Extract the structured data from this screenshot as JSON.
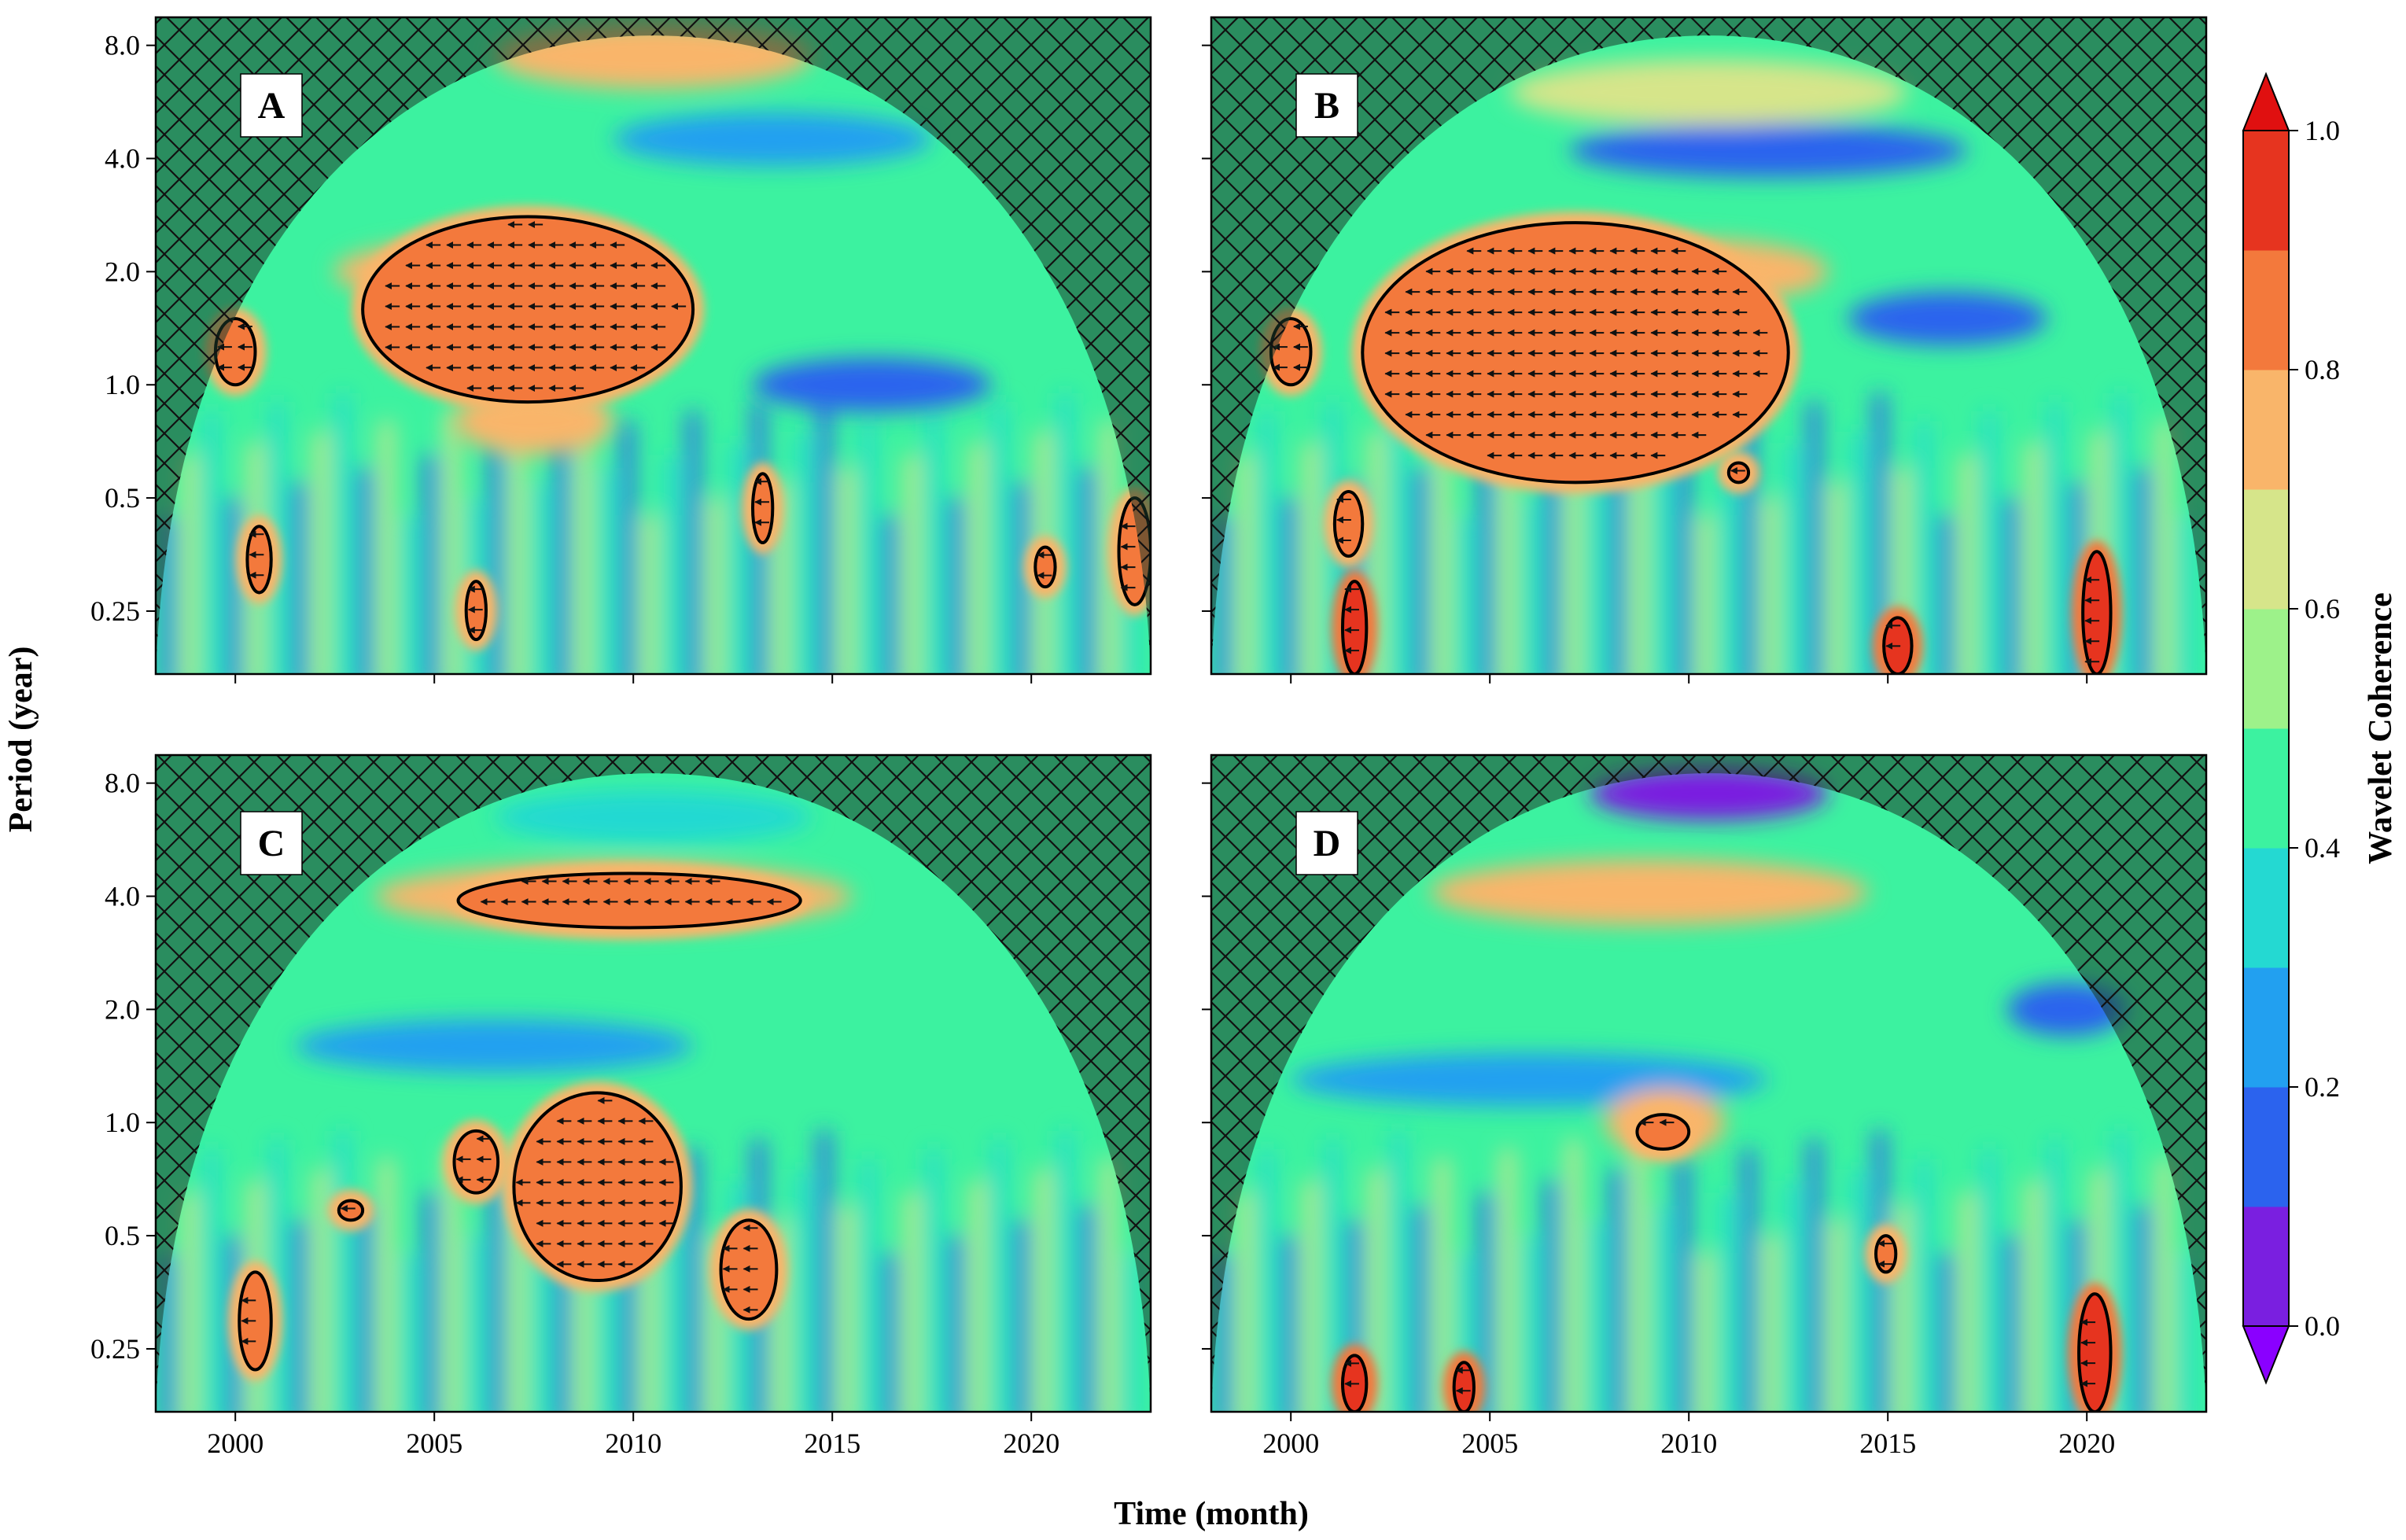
{
  "chart_data": {
    "type": "heatmap",
    "title": "",
    "xlabel": "Time (month)",
    "ylabel": "Period (year)",
    "x_ticks": [
      "2000",
      "2005",
      "2010",
      "2015",
      "2020"
    ],
    "x_tick_values": [
      2000,
      2005,
      2010,
      2015,
      2020
    ],
    "xlim": [
      1998,
      2023
    ],
    "y_ticks": [
      "8.0",
      "4.0",
      "2.0",
      "1.0",
      "0.5",
      "0.25"
    ],
    "y_tick_values": [
      8.0,
      4.0,
      2.0,
      1.0,
      0.5,
      0.25
    ],
    "ylim": [
      0.17,
      9.5
    ],
    "y_scale": "log2",
    "y_inverted": true,
    "grid": false,
    "cone_of_influence": "hatched",
    "colorbar": {
      "label": "Wavelet Coherence",
      "ticks": [
        "0.0",
        "0.2",
        "0.4",
        "0.6",
        "0.8",
        "1.0"
      ],
      "tick_values": [
        0.0,
        0.2,
        0.4,
        0.6,
        0.8,
        1.0
      ],
      "range": [
        0.0,
        1.0
      ],
      "levels": 10,
      "colors": [
        "#7a1fe0",
        "#2b63ee",
        "#22a0f0",
        "#24d9d2",
        "#3cf2a0",
        "#9df28a",
        "#d6e58a",
        "#f9b56a",
        "#f3793c",
        "#e6341f"
      ],
      "extend_low": "#8a00ff",
      "extend_high": "#e01010",
      "placement": "right"
    },
    "panels": [
      {
        "label": "A",
        "significant_regions": [
          {
            "t_start": 2003.2,
            "t_end": 2011.5,
            "period_low": 0.9,
            "period_high": 2.8,
            "coherence": 0.85
          },
          {
            "t_start": 1999.5,
            "t_end": 2000.5,
            "period_low": 1.0,
            "period_high": 1.5,
            "coherence": 0.82
          },
          {
            "t_start": 2000.3,
            "t_end": 2000.9,
            "period_low": 0.28,
            "period_high": 0.42,
            "coherence": 0.8
          },
          {
            "t_start": 2005.8,
            "t_end": 2006.3,
            "period_low": 0.21,
            "period_high": 0.3,
            "coherence": 0.8
          },
          {
            "t_start": 2013.0,
            "t_end": 2013.5,
            "period_low": 0.38,
            "period_high": 0.58,
            "coherence": 0.8
          },
          {
            "t_start": 2020.1,
            "t_end": 2020.6,
            "period_low": 0.29,
            "period_high": 0.37,
            "coherence": 0.8
          },
          {
            "t_start": 2022.2,
            "t_end": 2023.0,
            "period_low": 0.26,
            "period_high": 0.5,
            "coherence": 0.82
          }
        ],
        "high_bands": [
          {
            "period_center": 2.0,
            "t_center": 2006.5,
            "t_width": 8.0,
            "coherence": 0.7
          },
          {
            "period_center": 7.5,
            "t_center": 2010.5,
            "t_width": 8.0,
            "coherence": 0.78
          },
          {
            "period_center": 0.8,
            "t_center": 2007.5,
            "t_width": 4.0,
            "coherence": 0.78
          }
        ],
        "low_bands": [
          {
            "period_center": 4.5,
            "t_center": 2013.5,
            "t_width": 8.0,
            "coherence": 0.28
          },
          {
            "period_center": 1.0,
            "t_center": 2016.0,
            "t_width": 6.0,
            "coherence": 0.15
          }
        ]
      },
      {
        "label": "B",
        "significant_regions": [
          {
            "t_start": 2001.8,
            "t_end": 2012.5,
            "period_low": 0.55,
            "period_high": 2.7,
            "coherence": 0.85
          },
          {
            "t_start": 1999.5,
            "t_end": 2000.5,
            "period_low": 1.0,
            "period_high": 1.5,
            "coherence": 0.82
          },
          {
            "t_start": 2001.1,
            "t_end": 2001.8,
            "period_low": 0.35,
            "period_high": 0.52,
            "coherence": 0.8
          },
          {
            "t_start": 2001.3,
            "t_end": 2001.9,
            "period_low": 0.17,
            "period_high": 0.3,
            "coherence": 0.92
          },
          {
            "t_start": 2011.0,
            "t_end": 2011.5,
            "period_low": 0.55,
            "period_high": 0.62,
            "coherence": 0.8
          },
          {
            "t_start": 2014.9,
            "t_end": 2015.6,
            "period_low": 0.17,
            "period_high": 0.24,
            "coherence": 0.9
          },
          {
            "t_start": 2019.9,
            "t_end": 2020.6,
            "period_low": 0.17,
            "period_high": 0.36,
            "coherence": 0.92
          }
        ],
        "high_bands": [
          {
            "period_center": 2.0,
            "t_center": 2010.0,
            "t_width": 7.0,
            "coherence": 0.78
          },
          {
            "period_center": 6.0,
            "t_center": 2010.5,
            "t_width": 10.0,
            "coherence": 0.68
          }
        ],
        "low_bands": [
          {
            "period_center": 4.2,
            "t_center": 2012.0,
            "t_width": 10.0,
            "coherence": 0.18
          },
          {
            "period_center": 1.5,
            "t_center": 2016.5,
            "t_width": 5.0,
            "coherence": 0.18
          }
        ]
      },
      {
        "label": "C",
        "significant_regions": [
          {
            "t_start": 2005.6,
            "t_end": 2014.2,
            "period_low": 3.3,
            "period_high": 4.6,
            "coherence": 0.85
          },
          {
            "t_start": 2007.0,
            "t_end": 2011.2,
            "period_low": 0.38,
            "period_high": 1.2,
            "coherence": 0.83
          },
          {
            "t_start": 2005.5,
            "t_end": 2006.6,
            "period_low": 0.65,
            "period_high": 0.95,
            "coherence": 0.8
          },
          {
            "t_start": 2002.6,
            "t_end": 2003.2,
            "period_low": 0.55,
            "period_high": 0.62,
            "coherence": 0.8
          },
          {
            "t_start": 2000.1,
            "t_end": 2000.9,
            "period_low": 0.22,
            "period_high": 0.4,
            "coherence": 0.8
          },
          {
            "t_start": 2012.2,
            "t_end": 2013.6,
            "period_low": 0.3,
            "period_high": 0.55,
            "coherence": 0.8
          }
        ],
        "high_bands": [
          {
            "period_center": 4.0,
            "t_center": 2009.5,
            "t_width": 12.0,
            "coherence": 0.72
          }
        ],
        "low_bands": [
          {
            "period_center": 1.6,
            "t_center": 2006.5,
            "t_width": 10.0,
            "coherence": 0.25
          },
          {
            "period_center": 6.5,
            "t_center": 2010.5,
            "t_width": 8.0,
            "coherence": 0.3
          }
        ]
      },
      {
        "label": "D",
        "significant_regions": [
          {
            "t_start": 2008.7,
            "t_end": 2010.0,
            "period_low": 0.85,
            "period_high": 1.05,
            "coherence": 0.8
          },
          {
            "t_start": 2014.7,
            "t_end": 2015.2,
            "period_low": 0.4,
            "period_high": 0.5,
            "coherence": 0.8
          },
          {
            "t_start": 2001.3,
            "t_end": 2001.9,
            "period_low": 0.17,
            "period_high": 0.24,
            "coherence": 0.9
          },
          {
            "t_start": 2004.1,
            "t_end": 2004.6,
            "period_low": 0.17,
            "period_high": 0.23,
            "coherence": 0.9
          },
          {
            "t_start": 2019.8,
            "t_end": 2020.6,
            "period_low": 0.17,
            "period_high": 0.35,
            "coherence": 0.95
          }
        ],
        "high_bands": [
          {
            "period_center": 4.1,
            "t_center": 2009.0,
            "t_width": 11.0,
            "coherence": 0.75
          },
          {
            "period_center": 1.0,
            "t_center": 2009.4,
            "t_width": 3.0,
            "coherence": 0.72
          }
        ],
        "low_bands": [
          {
            "period_center": 7.5,
            "t_center": 2010.5,
            "t_width": 6.0,
            "coherence": 0.05
          },
          {
            "period_center": 2.0,
            "t_center": 2019.5,
            "t_width": 3.0,
            "coherence": 0.1
          },
          {
            "period_center": 1.3,
            "t_center": 2006.0,
            "t_width": 12.0,
            "coherence": 0.25
          }
        ]
      }
    ]
  }
}
